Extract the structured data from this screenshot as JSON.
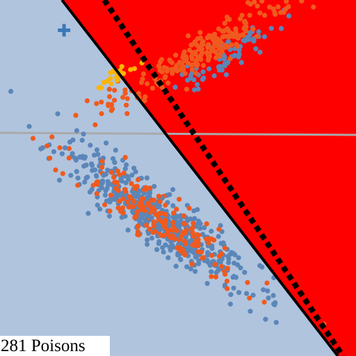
{
  "caption": "281 Poisons",
  "chart_data": {
    "type": "scatter",
    "title": "",
    "xlabel": "",
    "ylabel": "",
    "axes_visible": false,
    "grid": false,
    "xlim": [
      0,
      10
    ],
    "ylim": [
      0,
      10
    ],
    "regions": [
      {
        "name": "region-left",
        "color": "#b0c4de"
      },
      {
        "name": "region-right",
        "color": "#ff0000"
      }
    ],
    "boundaries": [
      {
        "name": "decision-boundary-solid",
        "style": "solid",
        "color": "#000000",
        "points": [
          [
            1.74,
            10.0
          ],
          [
            9.49,
            0.0
          ]
        ]
      },
      {
        "name": "decision-boundary-dotted",
        "style": "dotted",
        "color": "#000000",
        "points": [
          [
            2.93,
            10.0
          ],
          [
            9.63,
            0.0
          ]
        ]
      },
      {
        "name": "horizontal-reference-line",
        "style": "solid",
        "color": "#aaaaaa",
        "points": [
          [
            0.0,
            6.27
          ],
          [
            10.0,
            6.21
          ]
        ]
      }
    ],
    "series": [
      {
        "color": "#5b86b8",
        "marker": "circle",
        "clusters": [
          {
            "n": 520,
            "mean": [
              4.4,
              3.9
            ],
            "major_dir": [
              0.8,
              -0.6
            ],
            "major_sd": 1.55,
            "minor_sd": 0.32
          },
          {
            "n": 70,
            "mean": [
              6.3,
              8.4
            ],
            "major_dir": [
              0.85,
              0.53
            ],
            "major_sd": 0.9,
            "minor_sd": 0.2
          }
        ],
        "points": [
          [
            0.82,
            6.45
          ],
          [
            1.2,
            5.85
          ],
          [
            7.9,
            9.2
          ],
          [
            6.7,
            8.4
          ]
        ]
      },
      {
        "color": "#f05a1e",
        "marker": "circle",
        "clusters": [
          {
            "n": 230,
            "mean": [
              5.5,
              8.45
            ],
            "major_dir": [
              0.86,
              0.51
            ],
            "major_sd": 1.55,
            "minor_sd": 0.22
          },
          {
            "n": 190,
            "mean": [
              4.4,
              3.9
            ],
            "major_dir": [
              0.8,
              -0.6
            ],
            "major_sd": 1.4,
            "minor_sd": 0.3
          }
        ],
        "points": [
          [
            9.1,
            0.9
          ],
          [
            7.5,
            2.05
          ]
        ]
      },
      {
        "color": "#ffb400",
        "marker": "circle",
        "clusters": [
          {
            "n": 22,
            "mean": [
              3.4,
              7.9
            ],
            "major_dir": [
              0.86,
              0.51
            ],
            "major_sd": 0.28,
            "minor_sd": 0.12
          }
        ],
        "points": []
      },
      {
        "color": "#3a78b8",
        "marker": "plus",
        "clusters": [],
        "points": [
          [
            1.8,
            9.15
          ]
        ]
      }
    ]
  }
}
